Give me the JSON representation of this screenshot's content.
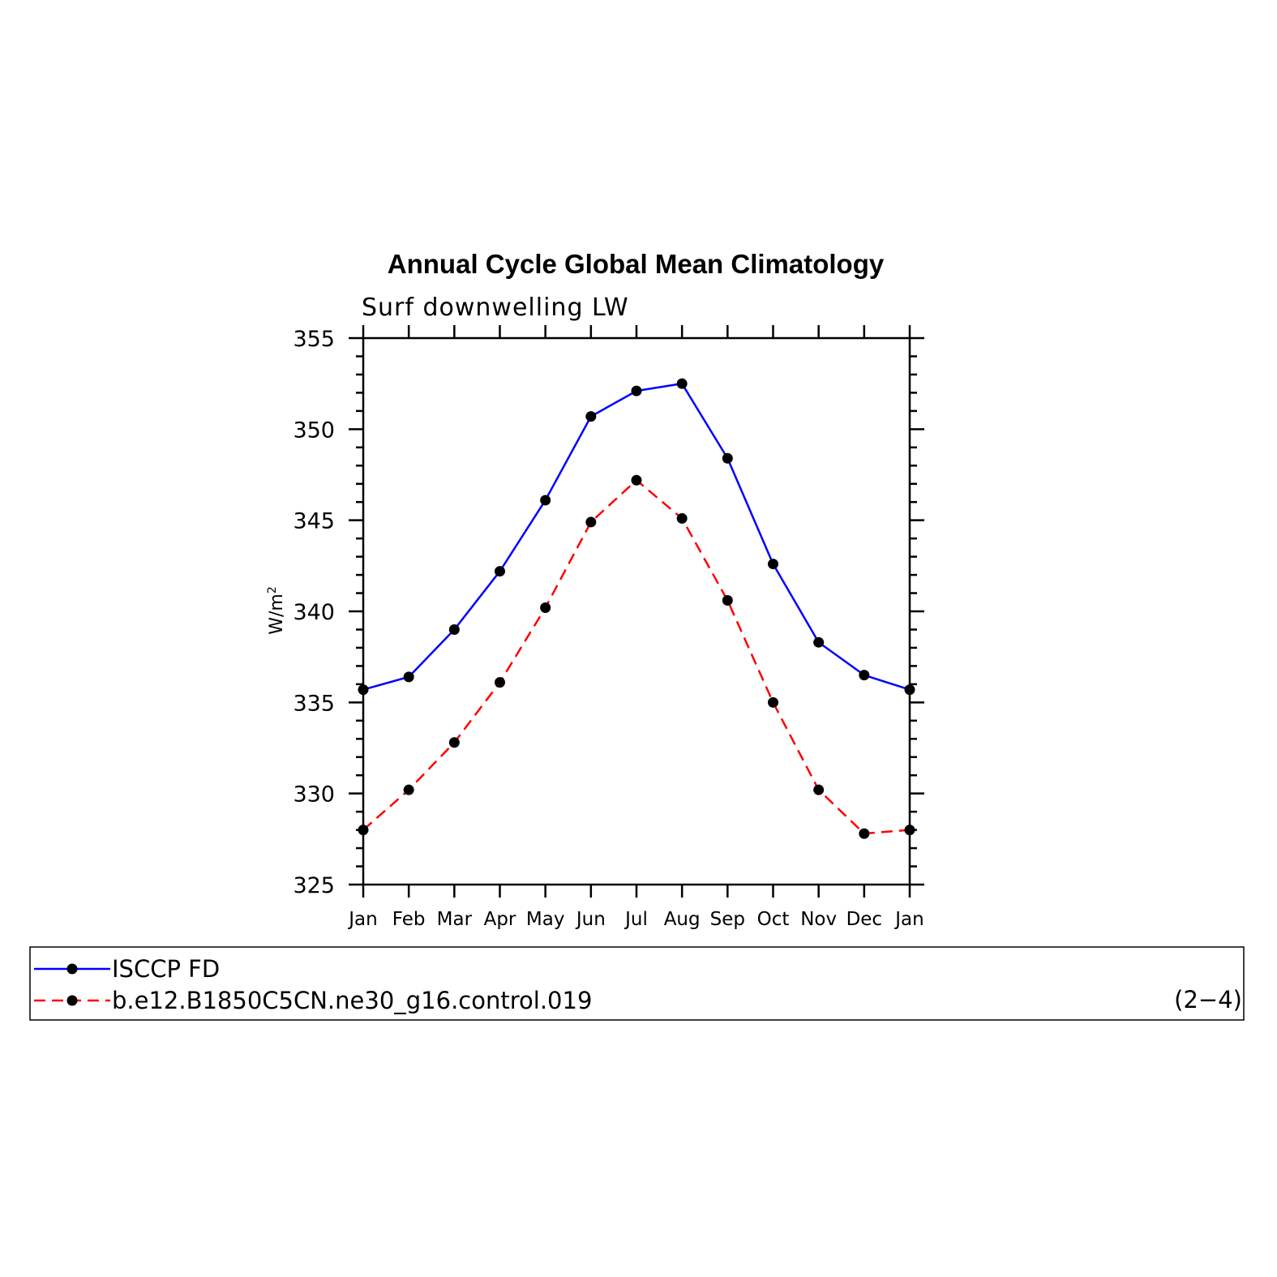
{
  "chart_data": {
    "type": "line",
    "title": "Annual Cycle Global Mean Climatology",
    "subtitle": "Surf downwelling LW",
    "ylabel": "W/m",
    "ylabel_superscript": "2",
    "xlabel": "",
    "categories": [
      "Jan",
      "Feb",
      "Mar",
      "Apr",
      "May",
      "Jun",
      "Jul",
      "Aug",
      "Sep",
      "Oct",
      "Nov",
      "Dec",
      "Jan"
    ],
    "ylim": [
      325,
      355
    ],
    "yticks": [
      325,
      330,
      335,
      340,
      345,
      350,
      355
    ],
    "yminor_step": 1,
    "series": [
      {
        "name": "ISCCP FD",
        "color": "#0000ff",
        "dashed": false,
        "values": [
          335.7,
          336.4,
          339.0,
          342.2,
          346.1,
          350.7,
          352.1,
          352.5,
          348.4,
          342.6,
          338.3,
          336.5,
          335.7
        ]
      },
      {
        "name": "b.e12.B1850C5CN.ne30_g16.control.019",
        "color": "#ff0000",
        "dashed": true,
        "values": [
          328.0,
          330.2,
          332.8,
          336.1,
          340.2,
          344.9,
          347.2,
          345.1,
          340.6,
          335.0,
          330.2,
          327.8,
          328.0
        ]
      }
    ],
    "panel_label": "(2−4)",
    "legend_position": "bottom"
  }
}
